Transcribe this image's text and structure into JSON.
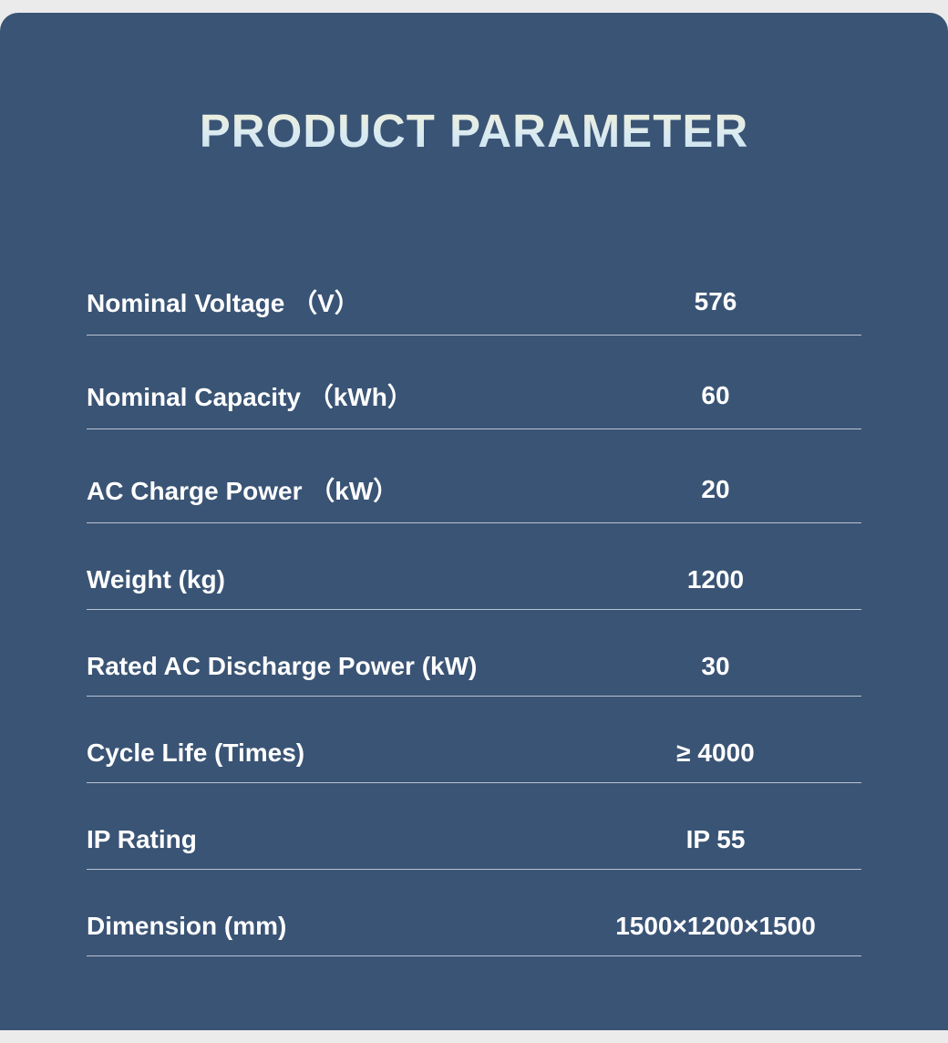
{
  "card": {
    "title": "PRODUCT PARAMETER",
    "background_color": "#3a5475",
    "title_gradient_top": "#f5f0d4",
    "title_gradient_bottom": "#c8e0ee",
    "text_color": "#ffffff",
    "divider_color": "#b8c3d1",
    "title_fontsize": 51,
    "label_fontsize": 28,
    "value_fontsize": 28,
    "border_radius": "20px 20px 0 0",
    "parameters": [
      {
        "label": "Nominal  Voltage  （V）",
        "value": "576"
      },
      {
        "label": "Nominal Capacity （kWh）",
        "value": "60"
      },
      {
        "label": "AC Charge Power （kW）",
        "value": "20"
      },
      {
        "label": "Weight (kg)",
        "value": "1200"
      },
      {
        "label": "Rated AC Discharge Power (kW)",
        "value": "30"
      },
      {
        "label": "Cycle Life (Times)",
        "value": "≥ 4000"
      },
      {
        "label": "IP Rating",
        "value": "IP 55"
      },
      {
        "label": "Dimension (mm)",
        "value": "1500×1200×1500"
      }
    ]
  }
}
